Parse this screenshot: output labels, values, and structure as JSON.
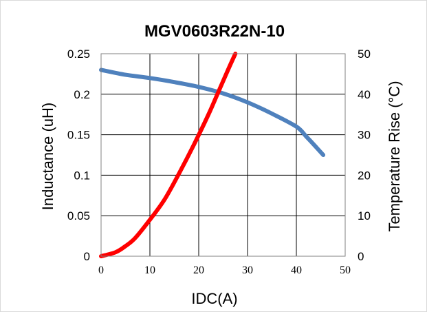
{
  "chart_data": {
    "type": "line",
    "title": "MGV0603R22N-10",
    "xlabel": "IDC(A)",
    "ylabel_left": "Inductance (uH)",
    "ylabel_right": "Temperature Rise (°C)",
    "xlim": [
      0,
      50
    ],
    "ylim_left": [
      0,
      0.25
    ],
    "ylim_right": [
      0,
      50
    ],
    "x_ticks": [
      "0",
      "10",
      "20",
      "30",
      "40",
      "50"
    ],
    "y_left_ticks": [
      "0",
      "0.05",
      "0.1",
      "0.15",
      "0.2",
      "0.25"
    ],
    "y_right_ticks": [
      "0",
      "10",
      "20",
      "30",
      "40",
      "50"
    ],
    "grid": true,
    "series": [
      {
        "axis": "left",
        "color": "#4f81bd",
        "x": [
          0,
          5,
          10,
          15,
          20,
          25,
          30,
          35,
          40,
          42,
          44,
          45.5
        ],
        "y": [
          0.23,
          0.224,
          0.22,
          0.215,
          0.209,
          0.201,
          0.19,
          0.176,
          0.16,
          0.148,
          0.135,
          0.125
        ]
      },
      {
        "axis": "right",
        "color": "#ff0000",
        "x": [
          0,
          3,
          5,
          7,
          10,
          13,
          16,
          19,
          22,
          24,
          26,
          27.5
        ],
        "y": [
          0,
          1,
          2.5,
          4.5,
          9,
          14,
          20.5,
          27.5,
          35,
          40.5,
          46,
          50
        ]
      }
    ]
  }
}
